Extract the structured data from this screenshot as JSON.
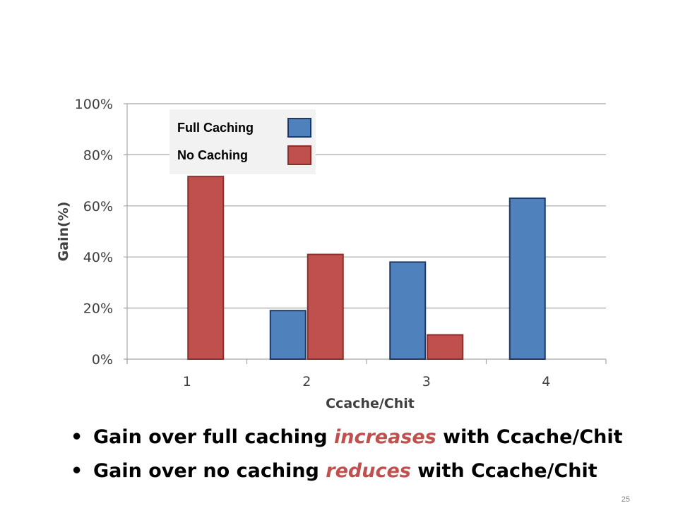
{
  "chart_data": {
    "type": "bar",
    "categories": [
      "1",
      "2",
      "3",
      "4"
    ],
    "series": [
      {
        "name": "Full Caching",
        "values": [
          0,
          19,
          38,
          63
        ],
        "color": "#4f81bd",
        "stroke": "#1f3864"
      },
      {
        "name": "No Caching",
        "values": [
          71.5,
          41,
          9.5,
          0
        ],
        "color": "#c0504d",
        "stroke": "#8b2f2c"
      }
    ],
    "yticks": [
      "0%",
      "20%",
      "40%",
      "60%",
      "80%",
      "100%"
    ],
    "ytick_values": [
      0,
      20,
      40,
      60,
      80,
      100
    ],
    "ylim": [
      0,
      100
    ],
    "xlabel": "Ccache/Chit",
    "ylabel": "Gain(%)",
    "grid": true,
    "legend_position": "top-left"
  },
  "bullets": [
    {
      "before": "Gain over full caching ",
      "emph": "increases",
      "after": " with Ccache/Chit"
    },
    {
      "before": "Gain over no caching ",
      "emph": "reduces",
      "after": " with Ccache/Chit"
    }
  ],
  "bullet_symbol": "•",
  "page_number": "25"
}
